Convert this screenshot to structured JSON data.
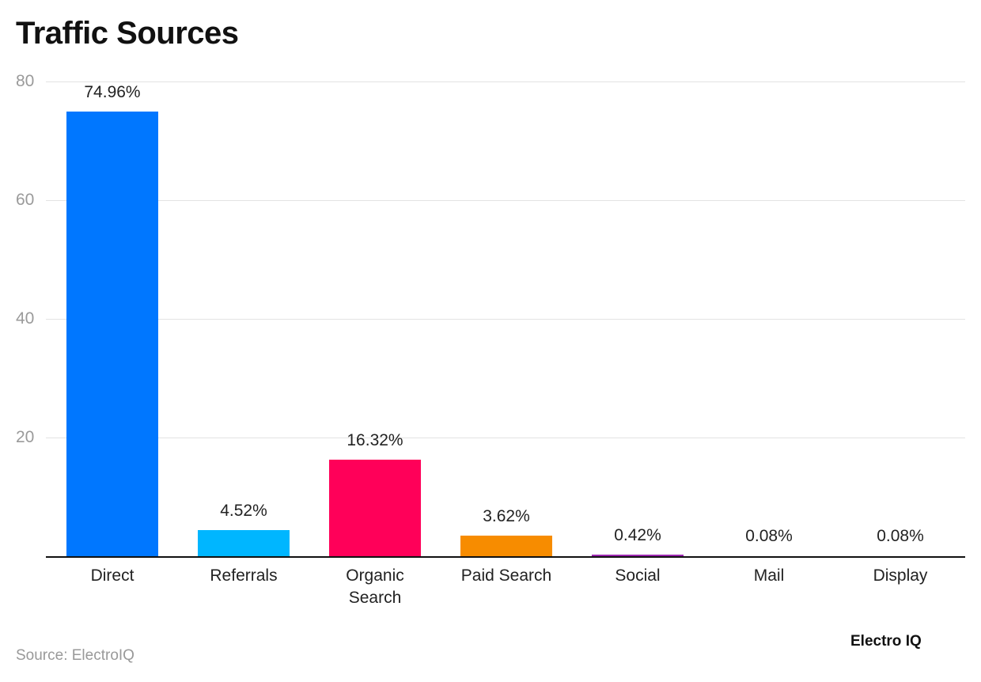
{
  "header": {
    "title": "Traffic Sources"
  },
  "footer": {
    "source": "Source: ElectroIQ",
    "brand": "Electro IQ"
  },
  "axis": {
    "yticks": [
      "80",
      "60",
      "40",
      "20"
    ]
  },
  "labels": {
    "v0": "74.96%",
    "v1": "4.52%",
    "v2": "16.32%",
    "v3": "3.62%",
    "v4": "0.42%",
    "v5": "0.08%",
    "v6": "0.08%",
    "c0": "Direct",
    "c1": "Referrals",
    "c2": "Organic Search",
    "c3": "Paid Search",
    "c4": "Social",
    "c5": "Mail",
    "c6": "Display"
  },
  "chart_data": {
    "type": "bar",
    "title": "Traffic Sources",
    "categories": [
      "Direct",
      "Referrals",
      "Organic Search",
      "Paid Search",
      "Social",
      "Mail",
      "Display"
    ],
    "values": [
      74.96,
      4.52,
      16.32,
      3.62,
      0.42,
      0.08,
      0.08
    ],
    "value_labels": [
      "74.96%",
      "4.52%",
      "16.32%",
      "3.62%",
      "0.42%",
      "0.08%",
      "0.08%"
    ],
    "colors": [
      "#0077ff",
      "#00b6ff",
      "#ff0059",
      "#f78c00",
      "#9c27b0",
      "#3f51b5",
      "#009688"
    ],
    "xlabel": "",
    "ylabel": "",
    "ylim": [
      0,
      80
    ],
    "yticks": [
      20,
      40,
      60,
      80
    ],
    "grid": true,
    "legend": "none",
    "source": "Source: ElectroIQ"
  }
}
